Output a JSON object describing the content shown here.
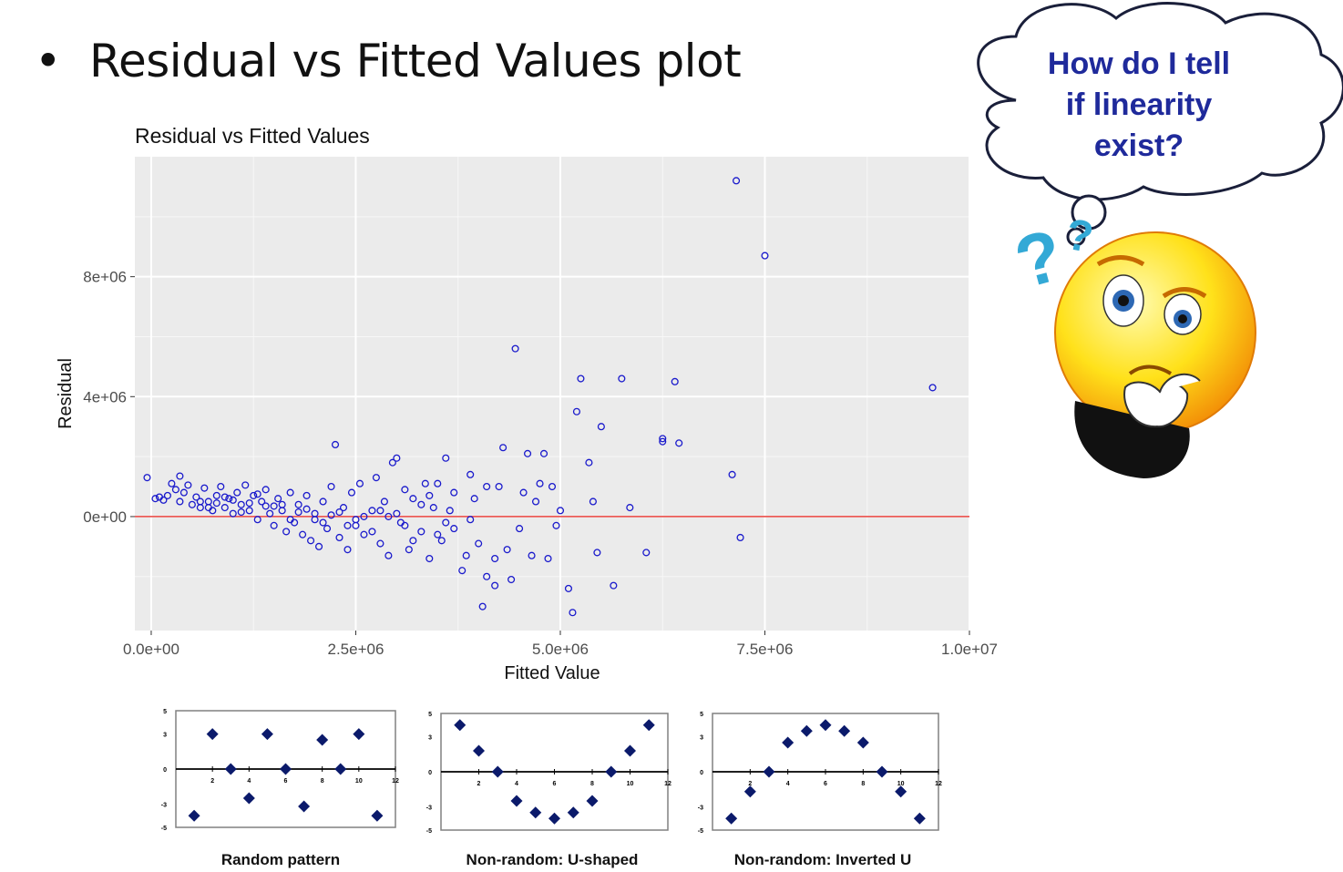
{
  "slide": {
    "bullet": "•",
    "title": "Residual vs Fitted Values plot"
  },
  "thought_bubble": {
    "line1": "How do I tell",
    "line2": "if linearity",
    "line3": "exist?"
  },
  "icons": {
    "thinking_face": "thinking-face-icon",
    "question_mark": "question-mark-icon"
  },
  "colors": {
    "point": "#1a1acc",
    "zero_line": "#e8413c",
    "panel_bg": "#ebebeb",
    "bubble_text": "#1f2a9b",
    "mini_marker": "#0b1a6b"
  },
  "chart_data": [
    {
      "type": "scatter",
      "title": "Residual vs Fitted Values",
      "xlabel": "Fitted Value",
      "ylabel": "Residual",
      "xlim": [
        -200000,
        10000000
      ],
      "ylim": [
        -3800000,
        12000000
      ],
      "x_ticks": [
        0,
        2500000,
        5000000,
        7500000,
        10000000
      ],
      "x_tick_labels": [
        "0.0e+00",
        "2.5e+06",
        "5.0e+06",
        "7.5e+06",
        "1.0e+07"
      ],
      "y_ticks": [
        0,
        4000000,
        8000000
      ],
      "y_tick_labels": [
        "0e+00",
        "4e+06",
        "8e+06"
      ],
      "reference_line": 0,
      "grid": true,
      "points": [
        [
          -50000,
          1300000
        ],
        [
          50000,
          600000
        ],
        [
          100000,
          650000
        ],
        [
          150000,
          550000
        ],
        [
          200000,
          700000
        ],
        [
          250000,
          1100000
        ],
        [
          300000,
          900000
        ],
        [
          350000,
          500000
        ],
        [
          400000,
          800000
        ],
        [
          350000,
          1350000
        ],
        [
          450000,
          1050000
        ],
        [
          500000,
          400000
        ],
        [
          550000,
          650000
        ],
        [
          600000,
          300000
        ],
        [
          650000,
          950000
        ],
        [
          700000,
          500000
        ],
        [
          750000,
          200000
        ],
        [
          800000,
          700000
        ],
        [
          850000,
          1000000
        ],
        [
          900000,
          300000
        ],
        [
          950000,
          600000
        ],
        [
          1000000,
          100000
        ],
        [
          1050000,
          800000
        ],
        [
          1100000,
          400000
        ],
        [
          1150000,
          1050000
        ],
        [
          1200000,
          200000
        ],
        [
          1250000,
          700000
        ],
        [
          1300000,
          -100000
        ],
        [
          1350000,
          500000
        ],
        [
          1400000,
          900000
        ],
        [
          1450000,
          100000
        ],
        [
          1500000,
          -300000
        ],
        [
          1550000,
          600000
        ],
        [
          1600000,
          200000
        ],
        [
          1650000,
          -500000
        ],
        [
          1700000,
          800000
        ],
        [
          1750000,
          -200000
        ],
        [
          1800000,
          400000
        ],
        [
          1850000,
          -600000
        ],
        [
          1900000,
          700000
        ],
        [
          1950000,
          -800000
        ],
        [
          2000000,
          100000
        ],
        [
          2050000,
          -1000000
        ],
        [
          2100000,
          500000
        ],
        [
          2150000,
          -400000
        ],
        [
          2200000,
          1000000
        ],
        [
          2250000,
          2400000
        ],
        [
          2300000,
          -700000
        ],
        [
          2350000,
          300000
        ],
        [
          2400000,
          -1100000
        ],
        [
          2450000,
          800000
        ],
        [
          2500000,
          -300000
        ],
        [
          2550000,
          1100000
        ],
        [
          2600000,
          -600000
        ],
        [
          2700000,
          200000
        ],
        [
          2750000,
          1300000
        ],
        [
          2800000,
          -900000
        ],
        [
          2850000,
          500000
        ],
        [
          2900000,
          -1300000
        ],
        [
          2950000,
          1800000
        ],
        [
          3000000,
          1950000
        ],
        [
          3050000,
          -200000
        ],
        [
          3100000,
          900000
        ],
        [
          3150000,
          -1100000
        ],
        [
          3200000,
          600000
        ],
        [
          3300000,
          -500000
        ],
        [
          3350000,
          1100000
        ],
        [
          3400000,
          -1400000
        ],
        [
          3450000,
          300000
        ],
        [
          3500000,
          1100000
        ],
        [
          3550000,
          -800000
        ],
        [
          3600000,
          1950000
        ],
        [
          3650000,
          200000
        ],
        [
          3700000,
          -400000
        ],
        [
          3800000,
          -1800000
        ],
        [
          3850000,
          -1300000
        ],
        [
          3900000,
          1400000
        ],
        [
          3950000,
          600000
        ],
        [
          4000000,
          -900000
        ],
        [
          4050000,
          -3000000
        ],
        [
          4100000,
          -2000000
        ],
        [
          4200000,
          -2300000
        ],
        [
          4250000,
          1000000
        ],
        [
          4300000,
          2300000
        ],
        [
          4350000,
          -1100000
        ],
        [
          4400000,
          -2100000
        ],
        [
          4450000,
          5600000
        ],
        [
          4500000,
          -400000
        ],
        [
          4550000,
          800000
        ],
        [
          4600000,
          2100000
        ],
        [
          4650000,
          -1300000
        ],
        [
          4700000,
          500000
        ],
        [
          4750000,
          1100000
        ],
        [
          4800000,
          2100000
        ],
        [
          4850000,
          -1400000
        ],
        [
          4900000,
          1000000
        ],
        [
          4950000,
          -300000
        ],
        [
          5000000,
          200000
        ],
        [
          5100000,
          -2400000
        ],
        [
          5150000,
          -3200000
        ],
        [
          5200000,
          3500000
        ],
        [
          5250000,
          4600000
        ],
        [
          5350000,
          1800000
        ],
        [
          5400000,
          500000
        ],
        [
          5450000,
          -1200000
        ],
        [
          5500000,
          3000000
        ],
        [
          5650000,
          -2300000
        ],
        [
          5750000,
          4600000
        ],
        [
          5850000,
          300000
        ],
        [
          6050000,
          -1200000
        ],
        [
          6250000,
          2600000
        ],
        [
          6250000,
          2500000
        ],
        [
          6400000,
          4500000
        ],
        [
          6450000,
          2450000
        ],
        [
          7100000,
          1400000
        ],
        [
          7150000,
          11200000
        ],
        [
          7200000,
          -700000
        ],
        [
          7500000,
          8700000
        ],
        [
          9550000,
          4300000
        ],
        [
          700000,
          300000
        ],
        [
          900000,
          650000
        ],
        [
          1100000,
          150000
        ],
        [
          1300000,
          750000
        ],
        [
          1500000,
          350000
        ],
        [
          1700000,
          -100000
        ],
        [
          1900000,
          250000
        ],
        [
          2100000,
          -200000
        ],
        [
          2300000,
          150000
        ],
        [
          2500000,
          -100000
        ],
        [
          2700000,
          -500000
        ],
        [
          2900000,
          0
        ],
        [
          3100000,
          -300000
        ],
        [
          3300000,
          400000
        ],
        [
          3500000,
          -600000
        ],
        [
          600000,
          500000
        ],
        [
          800000,
          450000
        ],
        [
          1000000,
          550000
        ],
        [
          1200000,
          450000
        ],
        [
          1400000,
          350000
        ],
        [
          1600000,
          400000
        ],
        [
          1800000,
          150000
        ],
        [
          2000000,
          -100000
        ],
        [
          2200000,
          50000
        ],
        [
          2400000,
          -300000
        ],
        [
          2600000,
          0
        ],
        [
          2800000,
          200000
        ],
        [
          3000000,
          100000
        ],
        [
          3200000,
          -800000
        ],
        [
          3400000,
          700000
        ],
        [
          3600000,
          -200000
        ],
        [
          3700000,
          800000
        ],
        [
          3900000,
          -100000
        ],
        [
          4100000,
          1000000
        ],
        [
          4200000,
          -1400000
        ]
      ]
    },
    {
      "type": "scatter",
      "title": "Random pattern",
      "xlim": [
        0,
        12
      ],
      "ylim": [
        -5,
        5
      ],
      "x_tick_labels": [
        "2",
        "4",
        "6",
        "8",
        "10",
        "12"
      ],
      "y_tick_labels": [
        "5",
        "3",
        "0",
        "-3",
        "-5"
      ],
      "x": [
        1,
        2,
        3,
        4,
        5,
        6,
        7,
        8,
        9,
        10,
        11
      ],
      "y": [
        -4,
        3,
        0,
        -2.5,
        3,
        0,
        -3.2,
        2.5,
        0,
        3,
        -4
      ]
    },
    {
      "type": "scatter",
      "title": "Non-random: U-shaped",
      "xlim": [
        0,
        12
      ],
      "ylim": [
        -5,
        5
      ],
      "x_tick_labels": [
        "2",
        "4",
        "6",
        "8",
        "10",
        "12"
      ],
      "y_tick_labels": [
        "5",
        "3",
        "0",
        "-3",
        "-5"
      ],
      "x": [
        1,
        2,
        3,
        4,
        5,
        6,
        7,
        8,
        9,
        10,
        11
      ],
      "y": [
        4,
        1.8,
        0,
        -2.5,
        -3.5,
        -4,
        -3.5,
        -2.5,
        0,
        1.8,
        4
      ]
    },
    {
      "type": "scatter",
      "title": "Non-random: Inverted U",
      "xlim": [
        0,
        12
      ],
      "ylim": [
        -5,
        5
      ],
      "x_tick_labels": [
        "2",
        "4",
        "6",
        "8",
        "10",
        "12"
      ],
      "y_tick_labels": [
        "5",
        "3",
        "0",
        "-3",
        "-5"
      ],
      "x": [
        1,
        2,
        3,
        4,
        5,
        6,
        7,
        8,
        9,
        10,
        11
      ],
      "y": [
        -4,
        -1.7,
        0,
        2.5,
        3.5,
        4,
        3.5,
        2.5,
        0,
        -1.7,
        -4
      ]
    }
  ]
}
